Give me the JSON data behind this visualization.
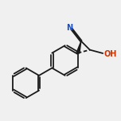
{
  "bg_color": "#f0f0f0",
  "line_color": "#1a1a1a",
  "bond_lw": 1.3,
  "font_size": 7.0,
  "figsize": [
    1.52,
    1.52
  ],
  "dpi": 100,
  "n_color": "#1a4fc4",
  "o_color": "#cc3300",
  "xlim": [
    -0.2,
    7.8
  ],
  "ylim": [
    -0.5,
    6.5
  ]
}
